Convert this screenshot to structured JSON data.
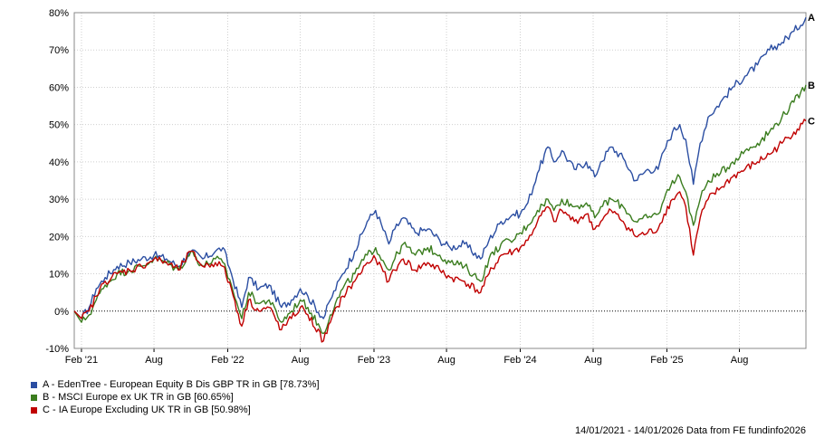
{
  "chart_data": {
    "type": "line",
    "ylim": [
      -10,
      80
    ],
    "y_ticks": [
      -10,
      0,
      10,
      20,
      30,
      40,
      50,
      60,
      70,
      80
    ],
    "y_tick_labels": [
      "-10%",
      "0%",
      "10%",
      "20%",
      "30%",
      "40%",
      "50%",
      "60%",
      "70%",
      "80%"
    ],
    "x_range": [
      "2021-01-14",
      "2026-01-14"
    ],
    "x_ticks": [
      {
        "date": "2021-02-01",
        "label": "Feb '21"
      },
      {
        "date": "2021-08-01",
        "label": "Aug"
      },
      {
        "date": "2022-02-01",
        "label": "Feb '22"
      },
      {
        "date": "2022-08-01",
        "label": "Aug"
      },
      {
        "date": "2023-02-01",
        "label": "Feb '23"
      },
      {
        "date": "2023-08-01",
        "label": "Aug"
      },
      {
        "date": "2024-02-01",
        "label": "Feb '24"
      },
      {
        "date": "2024-08-01",
        "label": "Aug"
      },
      {
        "date": "2025-02-01",
        "label": "Feb '25"
      },
      {
        "date": "2025-08-01",
        "label": "Aug"
      }
    ],
    "grid": true,
    "zero_line": "dotted",
    "series": [
      {
        "name": "A - EdenTree - European Equity B Dis GBP TR in GB [78.73%]",
        "end_label": "A",
        "color": "#2b4ea2",
        "points": [
          [
            "2021-01-14",
            0
          ],
          [
            "2021-02-01",
            -2
          ],
          [
            "2021-02-20",
            1
          ],
          [
            "2021-03-10",
            6
          ],
          [
            "2021-04-01",
            9
          ],
          [
            "2021-05-01",
            12
          ],
          [
            "2021-06-01",
            13
          ],
          [
            "2021-07-01",
            14
          ],
          [
            "2021-08-01",
            15
          ],
          [
            "2021-09-01",
            14
          ],
          [
            "2021-10-01",
            12
          ],
          [
            "2021-11-01",
            16
          ],
          [
            "2021-12-01",
            14
          ],
          [
            "2022-01-01",
            16
          ],
          [
            "2022-01-20",
            17
          ],
          [
            "2022-02-10",
            10
          ],
          [
            "2022-03-08",
            1
          ],
          [
            "2022-03-25",
            9
          ],
          [
            "2022-04-20",
            6
          ],
          [
            "2022-05-15",
            7
          ],
          [
            "2022-06-15",
            1
          ],
          [
            "2022-07-10",
            3
          ],
          [
            "2022-08-01",
            6
          ],
          [
            "2022-08-20",
            4
          ],
          [
            "2022-09-28",
            -2
          ],
          [
            "2022-10-15",
            3
          ],
          [
            "2022-11-15",
            10
          ],
          [
            "2022-12-15",
            16
          ],
          [
            "2023-01-15",
            24
          ],
          [
            "2023-02-05",
            27
          ],
          [
            "2023-03-10",
            18
          ],
          [
            "2023-03-25",
            22
          ],
          [
            "2023-04-15",
            25
          ],
          [
            "2023-05-15",
            21
          ],
          [
            "2023-06-15",
            22
          ],
          [
            "2023-07-15",
            19
          ],
          [
            "2023-08-10",
            17
          ],
          [
            "2023-09-15",
            18
          ],
          [
            "2023-10-25",
            14
          ],
          [
            "2023-11-15",
            19
          ],
          [
            "2023-12-15",
            24
          ],
          [
            "2024-01-15",
            26
          ],
          [
            "2024-02-01",
            26
          ],
          [
            "2024-02-20",
            29
          ],
          [
            "2024-03-15",
            37
          ],
          [
            "2024-04-10",
            44
          ],
          [
            "2024-04-25",
            40
          ],
          [
            "2024-05-15",
            43
          ],
          [
            "2024-06-15",
            38
          ],
          [
            "2024-07-15",
            40
          ],
          [
            "2024-08-05",
            36
          ],
          [
            "2024-08-20",
            40
          ],
          [
            "2024-09-15",
            44
          ],
          [
            "2024-10-15",
            41
          ],
          [
            "2024-11-15",
            35
          ],
          [
            "2024-12-15",
            38
          ],
          [
            "2025-01-10",
            38
          ],
          [
            "2025-01-25",
            43
          ],
          [
            "2025-02-15",
            48
          ],
          [
            "2025-03-05",
            50
          ],
          [
            "2025-03-20",
            46
          ],
          [
            "2025-04-08",
            34
          ],
          [
            "2025-04-25",
            45
          ],
          [
            "2025-05-15",
            52
          ],
          [
            "2025-06-15",
            56
          ],
          [
            "2025-07-15",
            60
          ],
          [
            "2025-08-15",
            63
          ],
          [
            "2025-09-15",
            66
          ],
          [
            "2025-10-15",
            70
          ],
          [
            "2025-11-15",
            72
          ],
          [
            "2025-12-15",
            75
          ],
          [
            "2026-01-14",
            78.73
          ]
        ]
      },
      {
        "name": "B - MSCI Europe ex UK TR in GB [60.65%]",
        "end_label": "B",
        "color": "#3b7d1f",
        "points": [
          [
            "2021-01-14",
            0
          ],
          [
            "2021-02-01",
            -3
          ],
          [
            "2021-02-20",
            -1
          ],
          [
            "2021-03-10",
            3
          ],
          [
            "2021-04-01",
            7
          ],
          [
            "2021-05-01",
            10
          ],
          [
            "2021-06-01",
            11
          ],
          [
            "2021-07-01",
            12
          ],
          [
            "2021-08-01",
            14
          ],
          [
            "2021-09-01",
            13
          ],
          [
            "2021-10-01",
            11
          ],
          [
            "2021-11-01",
            16
          ],
          [
            "2021-12-01",
            12
          ],
          [
            "2022-01-01",
            14
          ],
          [
            "2022-01-20",
            13
          ],
          [
            "2022-02-10",
            7
          ],
          [
            "2022-03-08",
            -2
          ],
          [
            "2022-03-25",
            5
          ],
          [
            "2022-04-20",
            2
          ],
          [
            "2022-05-15",
            3
          ],
          [
            "2022-06-15",
            -3
          ],
          [
            "2022-07-10",
            0
          ],
          [
            "2022-08-01",
            3
          ],
          [
            "2022-08-20",
            1
          ],
          [
            "2022-09-28",
            -6
          ],
          [
            "2022-10-15",
            -1
          ],
          [
            "2022-11-15",
            6
          ],
          [
            "2022-12-15",
            10
          ],
          [
            "2023-01-15",
            15
          ],
          [
            "2023-02-05",
            17
          ],
          [
            "2023-03-10",
            11
          ],
          [
            "2023-03-25",
            14
          ],
          [
            "2023-04-15",
            18
          ],
          [
            "2023-05-15",
            15
          ],
          [
            "2023-06-15",
            17
          ],
          [
            "2023-07-15",
            15
          ],
          [
            "2023-08-10",
            13
          ],
          [
            "2023-09-15",
            12
          ],
          [
            "2023-10-25",
            8
          ],
          [
            "2023-11-15",
            14
          ],
          [
            "2023-12-15",
            18
          ],
          [
            "2024-01-15",
            19
          ],
          [
            "2024-02-01",
            21
          ],
          [
            "2024-02-20",
            23
          ],
          [
            "2024-03-15",
            27
          ],
          [
            "2024-04-10",
            30
          ],
          [
            "2024-04-25",
            27
          ],
          [
            "2024-05-15",
            30
          ],
          [
            "2024-06-15",
            28
          ],
          [
            "2024-07-15",
            29
          ],
          [
            "2024-08-05",
            25
          ],
          [
            "2024-08-20",
            28
          ],
          [
            "2024-09-15",
            30
          ],
          [
            "2024-10-15",
            28
          ],
          [
            "2024-11-15",
            24
          ],
          [
            "2024-12-15",
            25
          ],
          [
            "2025-01-10",
            26
          ],
          [
            "2025-01-25",
            30
          ],
          [
            "2025-02-15",
            35
          ],
          [
            "2025-03-05",
            36
          ],
          [
            "2025-03-20",
            32
          ],
          [
            "2025-04-08",
            23
          ],
          [
            "2025-04-25",
            30
          ],
          [
            "2025-05-15",
            35
          ],
          [
            "2025-06-15",
            37
          ],
          [
            "2025-07-15",
            40
          ],
          [
            "2025-08-15",
            43
          ],
          [
            "2025-09-15",
            45
          ],
          [
            "2025-10-15",
            48
          ],
          [
            "2025-11-15",
            52
          ],
          [
            "2025-12-15",
            56
          ],
          [
            "2026-01-14",
            60.65
          ]
        ]
      },
      {
        "name": "C - IA Europe Excluding UK TR in GB [50.98%]",
        "end_label": "C",
        "color": "#c00000",
        "points": [
          [
            "2021-01-14",
            0
          ],
          [
            "2021-02-01",
            -2
          ],
          [
            "2021-02-20",
            0
          ],
          [
            "2021-03-10",
            4
          ],
          [
            "2021-04-01",
            8
          ],
          [
            "2021-05-01",
            10
          ],
          [
            "2021-06-01",
            11
          ],
          [
            "2021-07-01",
            12
          ],
          [
            "2021-08-01",
            14
          ],
          [
            "2021-09-01",
            13
          ],
          [
            "2021-10-01",
            11
          ],
          [
            "2021-11-01",
            16
          ],
          [
            "2021-12-01",
            12
          ],
          [
            "2022-01-01",
            13
          ],
          [
            "2022-01-20",
            12
          ],
          [
            "2022-02-10",
            6
          ],
          [
            "2022-03-08",
            -4
          ],
          [
            "2022-03-25",
            3
          ],
          [
            "2022-04-20",
            0
          ],
          [
            "2022-05-15",
            1
          ],
          [
            "2022-06-15",
            -5
          ],
          [
            "2022-07-10",
            -2
          ],
          [
            "2022-08-01",
            1
          ],
          [
            "2022-08-20",
            -1
          ],
          [
            "2022-09-28",
            -8
          ],
          [
            "2022-10-15",
            -3
          ],
          [
            "2022-11-15",
            4
          ],
          [
            "2022-12-15",
            8
          ],
          [
            "2023-01-15",
            13
          ],
          [
            "2023-02-05",
            14
          ],
          [
            "2023-03-10",
            8
          ],
          [
            "2023-03-25",
            11
          ],
          [
            "2023-04-15",
            14
          ],
          [
            "2023-05-15",
            11
          ],
          [
            "2023-06-15",
            13
          ],
          [
            "2023-07-15",
            11
          ],
          [
            "2023-08-10",
            9
          ],
          [
            "2023-09-15",
            8
          ],
          [
            "2023-10-25",
            5
          ],
          [
            "2023-11-15",
            10
          ],
          [
            "2023-12-15",
            15
          ],
          [
            "2024-01-15",
            16
          ],
          [
            "2024-02-01",
            17
          ],
          [
            "2024-02-20",
            19
          ],
          [
            "2024-03-15",
            24
          ],
          [
            "2024-04-10",
            28
          ],
          [
            "2024-04-25",
            24
          ],
          [
            "2024-05-15",
            27
          ],
          [
            "2024-06-15",
            24
          ],
          [
            "2024-07-15",
            26
          ],
          [
            "2024-08-05",
            22
          ],
          [
            "2024-08-20",
            24
          ],
          [
            "2024-09-15",
            27
          ],
          [
            "2024-10-15",
            24
          ],
          [
            "2024-11-15",
            20
          ],
          [
            "2024-12-15",
            21
          ],
          [
            "2025-01-10",
            22
          ],
          [
            "2025-01-25",
            26
          ],
          [
            "2025-02-15",
            30
          ],
          [
            "2025-03-05",
            32
          ],
          [
            "2025-03-20",
            28
          ],
          [
            "2025-04-08",
            15
          ],
          [
            "2025-04-25",
            25
          ],
          [
            "2025-05-15",
            30
          ],
          [
            "2025-06-15",
            33
          ],
          [
            "2025-07-15",
            36
          ],
          [
            "2025-08-15",
            38
          ],
          [
            "2025-09-15",
            40
          ],
          [
            "2025-10-15",
            42
          ],
          [
            "2025-11-15",
            45
          ],
          [
            "2025-12-15",
            48
          ],
          [
            "2026-01-14",
            50.98
          ]
        ]
      }
    ]
  },
  "footer": {
    "text": "14/01/2021 - 14/01/2026 Data from FE fundinfo2026"
  }
}
